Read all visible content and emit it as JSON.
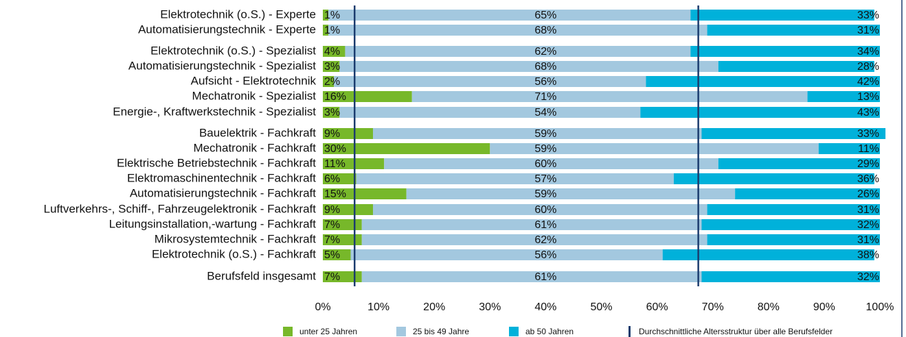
{
  "chart_data": {
    "type": "stacked_barh",
    "categories": [
      "Elektrotechnik (o.S.) - Experte",
      "Automatisierungstechnik - Experte",
      "Elektrotechnik (o.S.) - Spezialist",
      "Automatisierungstechnik - Spezialist",
      "Aufsicht - Elektrotechnik",
      "Mechatronik - Spezialist",
      "Energie-, Kraftwerkstechnik - Spezialist",
      "Bauelektrik - Fachkraft",
      "Mechatronik - Fachkraft",
      "Elektrische Betriebstechnik - Fachkraft",
      "Elektromaschinentechnik - Fachkraft",
      "Automatisierungstechnik - Fachkraft",
      "Luftverkehrs-, Schiff-, Fahrzeugelektronik - Fachkraft",
      "Leitungsinstallation,-wartung - Fachkraft",
      "Mikrosystemtechnik - Fachkraft",
      "Elektrotechnik (o.S.) - Fachkraft",
      "Berufsfeld insgesamt"
    ],
    "series": [
      {
        "name": "unter 25 Jahren",
        "color": "#77b82a",
        "values": [
          1,
          1,
          4,
          3,
          2,
          16,
          3,
          9,
          30,
          11,
          6,
          15,
          9,
          7,
          7,
          5,
          7
        ],
        "value_labels": [
          "1%",
          "1%",
          "4%",
          "3%",
          "2%",
          "16%",
          "3%",
          "9%",
          "30%",
          "11%",
          "6%",
          "15%",
          "9%",
          "7%",
          "7%",
          "5%",
          "7%"
        ]
      },
      {
        "name": "25 bis 49 Jahre",
        "color": "#a3c8df",
        "values": [
          65,
          68,
          62,
          68,
          56,
          71,
          54,
          59,
          59,
          60,
          57,
          59,
          60,
          61,
          62,
          56,
          61
        ],
        "value_labels": [
          "65%",
          "68%",
          "62%",
          "68%",
          "56%",
          "71%",
          "54%",
          "59%",
          "59%",
          "60%",
          "57%",
          "59%",
          "60%",
          "61%",
          "62%",
          "56%",
          "61%"
        ]
      },
      {
        "name": "ab 50 Jahren",
        "color": "#00b1da",
        "values": [
          33,
          31,
          34,
          28,
          42,
          13,
          43,
          33,
          11,
          29,
          36,
          26,
          31,
          32,
          31,
          38,
          32
        ],
        "value_labels": [
          "33%",
          "31%",
          "34%",
          "28%",
          "42%",
          "13%",
          "43%",
          "33%",
          "11%",
          "29%",
          "36%",
          "26%",
          "31%",
          "32%",
          "31%",
          "38%",
          "32%"
        ]
      }
    ],
    "reference_lines": {
      "name": "Durchschnittliche Altersstruktur über alle Berufsfelder",
      "color": "#1b3c6e",
      "values": [
        5.7,
        67.4
      ]
    },
    "xlim": [
      0,
      100
    ],
    "xticks": [
      {
        "value": 0,
        "label": "0%"
      },
      {
        "value": 10,
        "label": "10%"
      },
      {
        "value": 20,
        "label": "20%"
      },
      {
        "value": 30,
        "label": "30%"
      },
      {
        "value": 40,
        "label": "40%"
      },
      {
        "value": 50,
        "label": "50%"
      },
      {
        "value": 60,
        "label": "60%"
      },
      {
        "value": 70,
        "label": "70%"
      },
      {
        "value": 80,
        "label": "80%"
      },
      {
        "value": 90,
        "label": "90%"
      },
      {
        "value": 100,
        "label": "100%"
      }
    ]
  }
}
